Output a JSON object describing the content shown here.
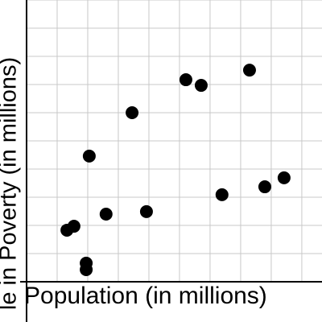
{
  "chart_data": {
    "type": "scatter",
    "x_label": "Population (in millions)",
    "y_label": "le in Poverty (in millions)",
    "x": [
      1.32,
      1.55,
      1.95,
      1.95,
      2.05,
      2.6,
      3.45,
      3.92,
      5.21,
      5.71,
      6.39,
      7.29,
      7.79,
      8.42
    ],
    "values": [
      1.83,
      1.97,
      0.66,
      0.43,
      4.46,
      2.4,
      6.0,
      2.49,
      7.17,
      6.97,
      3.09,
      7.51,
      3.37,
      3.69
    ],
    "color": "#000000",
    "xlim": [
      0,
      9.66
    ],
    "ylim": [
      0,
      10
    ],
    "xticks": [
      1,
      2,
      3,
      4,
      5,
      6,
      7,
      8,
      9
    ],
    "yticks": [
      1,
      2,
      3,
      4,
      5,
      6,
      7,
      8,
      9,
      10
    ],
    "grid": true
  }
}
